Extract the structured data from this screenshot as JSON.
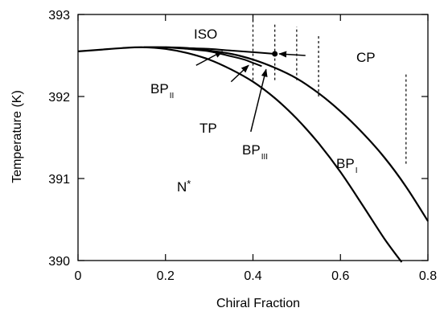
{
  "chart_data": {
    "type": "line",
    "title": "",
    "xlabel": "Chiral  Fraction",
    "ylabel": "Temperature   (K)",
    "xlim": [
      0,
      0.8
    ],
    "ylim": [
      390,
      393
    ],
    "grid": false,
    "x_ticks": [
      {
        "value": 0,
        "label": "0"
      },
      {
        "value": 0.2,
        "label": "0.2"
      },
      {
        "value": 0.4,
        "label": "0.4"
      },
      {
        "value": 0.6,
        "label": "0.6"
      },
      {
        "value": 0.8,
        "label": "0.8"
      }
    ],
    "y_ticks": [
      {
        "value": 390,
        "label": "390"
      },
      {
        "value": 391,
        "label": "391"
      },
      {
        "value": 392,
        "label": "392"
      },
      {
        "value": 393,
        "label": "393"
      }
    ],
    "series": [
      {
        "x": [
          0,
          0.05,
          0.1,
          0.15,
          0.2,
          0.25,
          0.3,
          0.35,
          0.4,
          0.45,
          0.5,
          0.55,
          0.6,
          0.65,
          0.7,
          0.74
        ],
        "y": [
          392.55,
          392.57,
          392.59,
          392.6,
          392.58,
          392.53,
          392.45,
          392.33,
          392.18,
          391.98,
          391.73,
          391.43,
          391.08,
          390.68,
          390.27,
          389.98
        ]
      },
      {
        "x": [
          0.15,
          0.2,
          0.25,
          0.3,
          0.35,
          0.4,
          0.45,
          0.5,
          0.55,
          0.6,
          0.65,
          0.7,
          0.75,
          0.8
        ],
        "y": [
          392.6,
          392.6,
          392.59,
          392.56,
          392.52,
          392.45,
          392.35,
          392.22,
          392.04,
          391.82,
          391.56,
          391.26,
          390.9,
          390.48
        ]
      },
      {
        "x": [
          0.15,
          0.2,
          0.25,
          0.3,
          0.35,
          0.4,
          0.45
        ],
        "y": [
          392.6,
          392.6,
          392.59,
          392.58,
          392.56,
          392.54,
          392.52
        ]
      },
      {
        "x": [
          0.2,
          0.25,
          0.3,
          0.35,
          0.38,
          0.4,
          0.42
        ],
        "y": [
          392.6,
          392.58,
          392.55,
          392.49,
          392.45,
          392.41,
          392.37
        ]
      }
    ],
    "critical_point": {
      "x": 0.45,
      "y": 392.52
    },
    "vertical_dotted_lines": [
      {
        "x": 0.4,
        "y_from": 392.2,
        "y_to": 393
      },
      {
        "x": 0.45,
        "y_from": 392.2,
        "y_to": 392.9
      },
      {
        "x": 0.5,
        "y_from": 392.2,
        "y_to": 392.85
      },
      {
        "x": 0.55,
        "y_from": 392.0,
        "y_to": 392.75
      },
      {
        "x": 0.75,
        "y_from": 391.18,
        "y_to": 392.28
      }
    ],
    "annotations": {
      "iso": "ISO",
      "cp": "CP",
      "tp": "TP",
      "nstar": "N*",
      "bp2_main": "BP",
      "bp2_sub": "II",
      "bp3_main": "BP",
      "bp3_sub": "III",
      "bp1_main": "BP",
      "bp1_sub": "I"
    },
    "arrows": [
      {
        "from": [
          0.52,
          392.5
        ],
        "to": [
          0.46,
          392.52
        ]
      },
      {
        "from": [
          0.27,
          392.38
        ],
        "to": [
          0.33,
          392.55
        ]
      },
      {
        "from": [
          0.35,
          392.18
        ],
        "to": [
          0.39,
          392.38
        ]
      },
      {
        "from": [
          0.395,
          391.57
        ],
        "to": [
          0.43,
          392.33
        ]
      }
    ]
  }
}
